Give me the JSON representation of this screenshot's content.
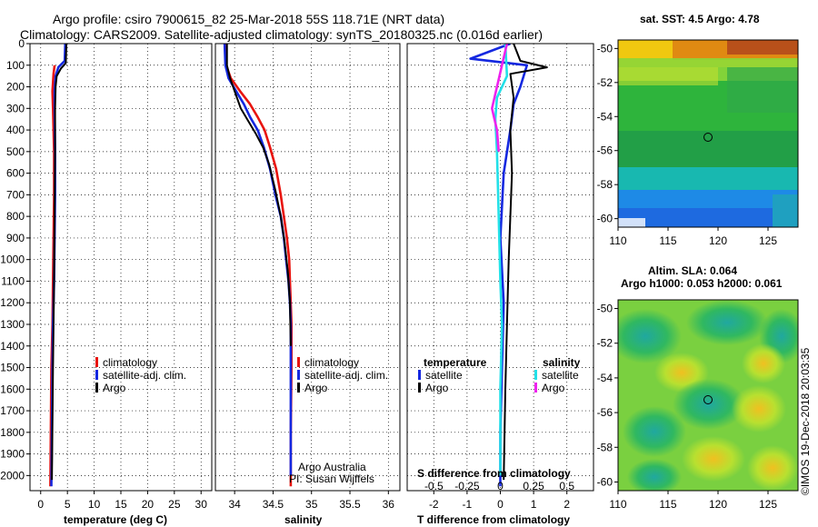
{
  "title": {
    "line1": "Argo profile: csiro 7900615_82 25-Mar-2018 55S 118.71E (NRT data)",
    "line2": "Climatology: CARS2009. Satellite-adjusted climatology: synTS_20180325.nc (0.016d earlier)"
  },
  "credits": {
    "org": "Argo Australia",
    "pi": "PI: Susan Wijffels",
    "imos": "©IMOS 19-Dec-2018 20:03:35"
  },
  "colors": {
    "climatology": "#e8140e",
    "satellite": "#1428e0",
    "argo": "#000000",
    "cyan": "#22e0e8",
    "magenta": "#ee22ee"
  },
  "chart_data": [
    {
      "type": "line",
      "panel": "temperature",
      "xlabel": "temperature (deg C)",
      "ylabel": "",
      "xlim": [
        -2,
        32
      ],
      "ylim": [
        2070,
        0
      ],
      "x_ticks": [
        "0",
        "5",
        "10",
        "15",
        "20",
        "25",
        "30"
      ],
      "y_ticks": [
        "0",
        "100",
        "200",
        "300",
        "400",
        "500",
        "600",
        "700",
        "800",
        "900",
        "1000",
        "1100",
        "1200",
        "1300",
        "1400",
        "1500",
        "1600",
        "1700",
        "1800",
        "1900",
        "2000"
      ],
      "legend": [
        "climatology",
        "satellite-adj. clim.",
        "Argo"
      ],
      "series": [
        {
          "name": "climatology",
          "color_key": "climatology",
          "x": [
            2.6,
            2.4,
            2.3,
            2.2,
            2.3,
            2.4,
            2.5,
            2.5,
            2.4,
            2.3,
            2.2,
            2.0,
            1.9,
            1.8
          ],
          "y": [
            100,
            140,
            180,
            220,
            300,
            400,
            500,
            700,
            900,
            1100,
            1300,
            1500,
            1800,
            2050
          ]
        },
        {
          "name": "satellite-adj. clim.",
          "color_key": "satellite",
          "x": [
            4.6,
            4.5,
            3.3,
            2.8,
            2.6,
            2.6,
            2.7,
            2.7,
            2.6,
            2.5,
            2.3,
            2.2,
            2.1,
            2.0
          ],
          "y": [
            0,
            80,
            110,
            150,
            220,
            300,
            500,
            700,
            900,
            1100,
            1300,
            1500,
            1800,
            2050
          ]
        },
        {
          "name": "Argo",
          "color_key": "argo",
          "x": [
            4.8,
            4.7,
            3.8,
            3.0,
            2.8,
            2.7,
            2.7,
            2.6,
            2.5,
            2.3,
            2.1
          ],
          "y": [
            0,
            90,
            115,
            150,
            200,
            300,
            500,
            800,
            1100,
            1500,
            2020
          ]
        }
      ]
    },
    {
      "type": "line",
      "panel": "salinity",
      "xlabel": "salinity",
      "ylabel": "",
      "xlim": [
        33.75,
        36.15
      ],
      "ylim": [
        2070,
        0
      ],
      "x_ticks": [
        "34",
        "34.5",
        "35",
        "35.5",
        "36"
      ],
      "legend": [
        "climatology",
        "satellite-adj. clim.",
        "Argo"
      ],
      "series": [
        {
          "name": "climatology",
          "color_key": "climatology",
          "x": [
            33.88,
            33.89,
            33.95,
            34.07,
            34.2,
            34.3,
            34.39,
            34.46,
            34.54,
            34.6,
            34.64,
            34.68,
            34.71,
            34.72,
            34.73,
            34.74,
            34.74,
            34.73,
            34.73
          ],
          "y": [
            0,
            100,
            160,
            220,
            280,
            340,
            400,
            480,
            580,
            700,
            800,
            900,
            1000,
            1100,
            1200,
            1300,
            1500,
            1800,
            2050
          ]
        },
        {
          "name": "satellite-adj. clim.",
          "color_key": "satellite",
          "x": [
            33.87,
            33.88,
            33.92,
            34.02,
            34.12,
            34.2,
            34.3,
            34.38,
            34.46,
            34.53,
            34.6,
            34.64,
            34.67,
            34.7,
            34.72,
            34.73,
            34.73,
            34.73,
            34.73
          ],
          "y": [
            0,
            100,
            160,
            220,
            280,
            340,
            400,
            480,
            580,
            700,
            800,
            900,
            1000,
            1100,
            1200,
            1300,
            1500,
            1800,
            2000
          ]
        },
        {
          "name": "Argo",
          "color_key": "argo",
          "x": [
            33.9,
            33.9,
            33.94,
            34.02,
            34.08,
            34.18,
            34.28,
            34.37,
            34.45,
            34.53,
            34.6,
            34.65,
            34.69,
            34.72,
            34.73
          ],
          "y": [
            0,
            100,
            160,
            240,
            300,
            360,
            420,
            480,
            560,
            680,
            800,
            920,
            1050,
            1200,
            1400
          ]
        }
      ]
    },
    {
      "type": "line",
      "panel": "differences",
      "xlabel": "T difference from climatology",
      "xlabel_top": "S difference from climatology",
      "xlim": [
        -2.8,
        2.8
      ],
      "ylim": [
        2070,
        0
      ],
      "x_ticks": [
        "-2",
        "-1",
        "0",
        "1",
        "2"
      ],
      "x_ticks_salinity": [
        "-0.5",
        "-0.25",
        "0",
        "0.25",
        "0.5"
      ],
      "legend_headers": [
        "temperature",
        "salinity"
      ],
      "legend": [
        "satellite",
        "Argo",
        "satellite",
        "Argo"
      ],
      "series": [
        {
          "name": "T satellite",
          "color_key": "satellite",
          "x": [
            0.3,
            -0.9,
            0.8,
            0.6,
            0.4,
            0.3,
            0.1,
            0.0,
            0.1,
            0.05,
            0.0,
            0.0
          ],
          "y": [
            0,
            70,
            100,
            200,
            280,
            400,
            600,
            900,
            1200,
            1500,
            1800,
            2050
          ]
        },
        {
          "name": "T Argo",
          "color_key": "argo",
          "x": [
            0.4,
            0.6,
            1.4,
            0.3,
            0.4,
            0.3,
            0.35,
            0.3,
            0.25,
            0.2,
            0.15,
            0.1
          ],
          "y": [
            0,
            80,
            110,
            140,
            250,
            400,
            600,
            800,
            1000,
            1300,
            1600,
            2020
          ]
        },
        {
          "name": "S satellite",
          "color_key": "cyan",
          "x": [
            0.15,
            0.2,
            -0.1,
            -0.15,
            -0.1,
            -0.05,
            0.0,
            0.05,
            0.0,
            0.0
          ],
          "y": [
            0,
            150,
            250,
            350,
            500,
            800,
            1100,
            1300,
            1600,
            2000
          ]
        },
        {
          "name": "S Argo",
          "color_key": "magenta",
          "x": [
            0.2,
            -0.1,
            -0.25,
            -0.1,
            -0.05
          ],
          "y": [
            0,
            200,
            300,
            400,
            500
          ]
        }
      ]
    },
    {
      "type": "heatmap",
      "panel": "map-sst",
      "title": "sat. SST: 4.5 Argo: 4.78",
      "x_ticks": [
        "110",
        "115",
        "120",
        "125"
      ],
      "y_ticks": [
        "-50",
        "-52",
        "-54",
        "-56",
        "-58",
        "-60"
      ],
      "xlim": [
        110,
        128
      ],
      "ylim": [
        -60.5,
        -49.5
      ],
      "marker": {
        "lon": 118.71,
        "lat": -55
      }
    },
    {
      "type": "heatmap",
      "panel": "map-sla",
      "title": "Altim. SLA: 0.064",
      "subtitle": "Argo h1000: 0.053 h2000: 0.061",
      "x_ticks": [
        "110",
        "115",
        "120",
        "125"
      ],
      "y_ticks": [
        "-50",
        "-52",
        "-54",
        "-56",
        "-58",
        "-60"
      ],
      "xlim": [
        110,
        128
      ],
      "ylim": [
        -60.5,
        -49.5
      ],
      "marker": {
        "lon": 118.71,
        "lat": -55
      }
    }
  ]
}
